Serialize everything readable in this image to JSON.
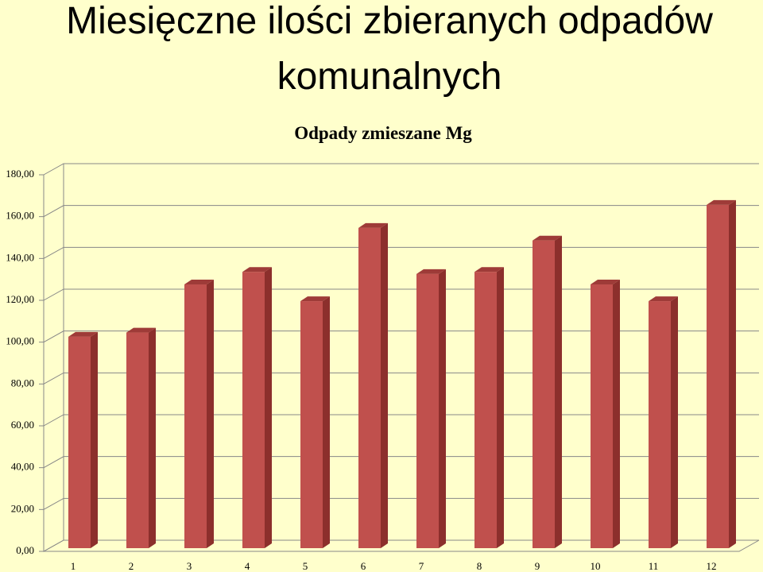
{
  "chart_data": {
    "type": "bar3d",
    "title_lines": [
      "Miesięczne ilości zbieranych odpadów",
      "komunalnych"
    ],
    "chart_title": "Odpady zmieszane Mg",
    "categories": [
      "1",
      "2",
      "3",
      "4",
      "5",
      "6",
      "7",
      "8",
      "9",
      "10",
      "11",
      "12"
    ],
    "values": [
      101,
      103,
      126,
      132,
      118,
      153,
      131,
      132,
      147,
      126,
      118,
      164
    ],
    "color": "#c0504d",
    "ylim": [
      0,
      180
    ],
    "yticks": [
      {
        "value": 0,
        "label": "0,00"
      },
      {
        "value": 20,
        "label": "20,00"
      },
      {
        "value": 40,
        "label": "40,00"
      },
      {
        "value": 60,
        "label": "60,00"
      },
      {
        "value": 80,
        "label": "80,00"
      },
      {
        "value": 100,
        "label": "100,00"
      },
      {
        "value": 120,
        "label": "120,00"
      },
      {
        "value": 140,
        "label": "140,00"
      },
      {
        "value": 160,
        "label": "160,00"
      },
      {
        "value": 180,
        "label": "180,00"
      }
    ],
    "grid": true
  }
}
